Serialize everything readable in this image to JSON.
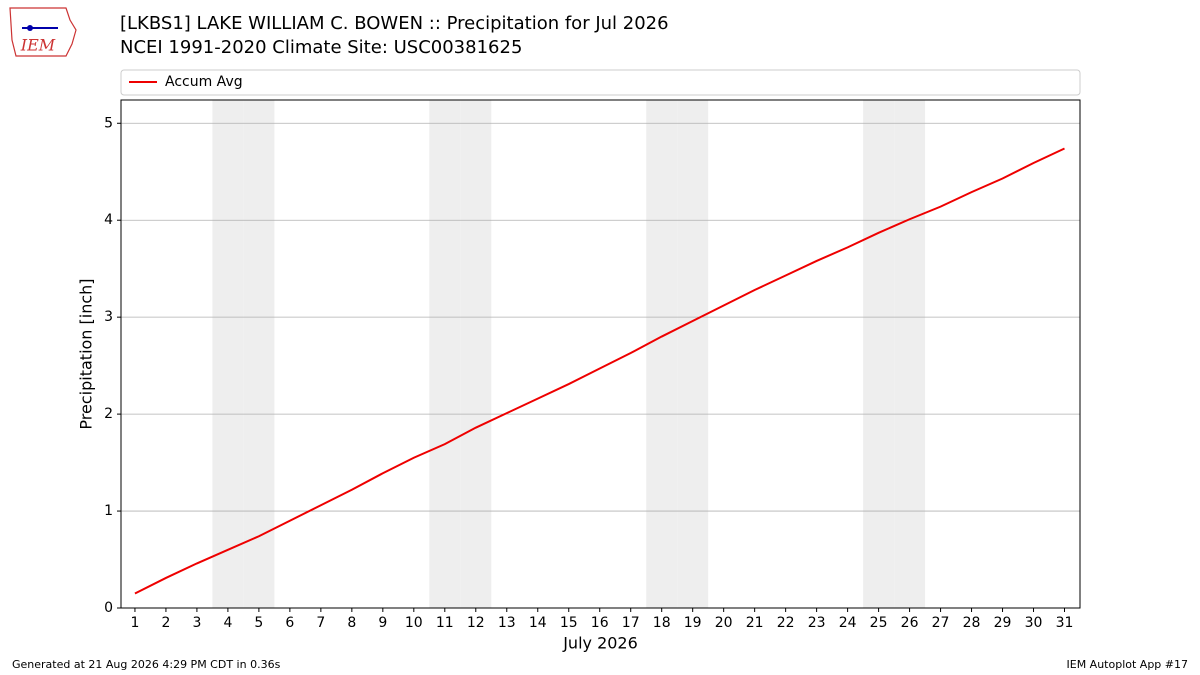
{
  "chart_data": {
    "type": "line",
    "title": "[LKBS1] LAKE WILLIAM C. BOWEN :: Precipitation for Jul 2026",
    "subtitle": "NCEI 1991-2020 Climate Site: USC00381625",
    "x_label": "July 2026",
    "y_label": "Precipitation [inch]",
    "x": [
      1,
      2,
      3,
      4,
      5,
      6,
      7,
      8,
      9,
      10,
      11,
      12,
      13,
      14,
      15,
      16,
      17,
      18,
      19,
      20,
      21,
      22,
      23,
      24,
      25,
      26,
      27,
      28,
      29,
      30,
      31
    ],
    "series": [
      {
        "name": "Accum Avg",
        "color": "#ee0000",
        "values": [
          0.15,
          0.31,
          0.46,
          0.6,
          0.74,
          0.9,
          1.06,
          1.22,
          1.39,
          1.55,
          1.69,
          1.86,
          2.01,
          2.16,
          2.31,
          2.47,
          2.63,
          2.8,
          2.96,
          3.12,
          3.28,
          3.43,
          3.58,
          3.72,
          3.87,
          4.01,
          4.14,
          4.29,
          4.43,
          4.59,
          4.74
        ]
      }
    ],
    "xlim": [
      0.55,
      31.5
    ],
    "xticks": [
      1,
      2,
      3,
      4,
      5,
      6,
      7,
      8,
      9,
      10,
      11,
      12,
      13,
      14,
      15,
      16,
      17,
      18,
      19,
      20,
      21,
      22,
      23,
      24,
      25,
      26,
      27,
      28,
      29,
      30,
      31
    ],
    "ylim": [
      0,
      5.24
    ],
    "yticks": [
      0,
      1,
      2,
      3,
      4,
      5
    ],
    "grid": true,
    "legend": "top",
    "shaded_days": [
      4,
      5,
      11,
      12,
      18,
      19,
      25,
      26
    ]
  },
  "logo_text": "IEM",
  "footer_left": "Generated at 21 Aug 2026 4:29 PM CDT in 0.36s",
  "footer_right": "IEM Autoplot App #17"
}
